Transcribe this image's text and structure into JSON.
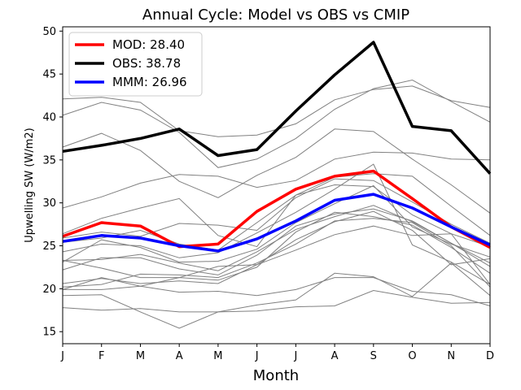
{
  "chart_data": {
    "type": "line",
    "title": "Annual Cycle: Model vs OBS vs CMIP",
    "xlabel": "Month",
    "ylabel": "Upwelling SW (W/m2)",
    "categories": [
      "J",
      "F",
      "M",
      "A",
      "M",
      "J",
      "J",
      "A",
      "S",
      "O",
      "N",
      "D"
    ],
    "ylim": [
      13.6,
      50.5
    ],
    "yticks": [
      15,
      20,
      25,
      30,
      35,
      40,
      45,
      50
    ],
    "grid": false,
    "legend_position": "top-left",
    "series": [
      {
        "name": "MOD",
        "label": "MOD: 28.40",
        "color": "#ff0000",
        "values": [
          26.1,
          27.7,
          27.3,
          24.9,
          25.2,
          29.0,
          31.6,
          33.1,
          33.7,
          30.5,
          27.2,
          24.8
        ]
      },
      {
        "name": "OBS",
        "label": "OBS: 38.78",
        "color": "#000000",
        "values": [
          36.0,
          36.7,
          37.5,
          38.6,
          35.5,
          36.2,
          40.7,
          44.9,
          48.7,
          38.9,
          38.4,
          33.4
        ]
      },
      {
        "name": "MMM",
        "label": "MMM: 26.96",
        "color": "#0000ff",
        "values": [
          25.5,
          26.2,
          25.9,
          25.0,
          24.4,
          25.8,
          27.9,
          30.3,
          31.0,
          29.4,
          27.2,
          25.1
        ]
      }
    ],
    "cmip_color": "#808080",
    "cmip_models": [
      [
        42.1,
        42.3,
        41.7,
        38.4,
        37.7,
        37.9,
        39.2,
        42.0,
        43.2,
        43.6,
        41.9,
        41.1
      ],
      [
        40.2,
        41.7,
        40.8,
        38.2,
        34.1,
        35.1,
        37.5,
        40.9,
        43.3,
        44.3,
        41.8,
        39.4
      ],
      [
        36.5,
        38.1,
        36.1,
        32.5,
        30.6,
        33.2,
        35.3,
        38.6,
        38.3,
        35.1,
        32.1,
        28.8
      ],
      [
        29.4,
        30.7,
        32.3,
        33.3,
        33.1,
        31.8,
        32.6,
        35.1,
        35.9,
        35.8,
        35.1,
        35.0
      ],
      [
        26.4,
        28.2,
        29.4,
        30.5,
        26.2,
        24.9,
        30.9,
        33.0,
        33.4,
        33.1,
        29.6,
        26.2
      ],
      [
        25.9,
        26.6,
        26.1,
        27.6,
        27.4,
        26.8,
        30.6,
        32.8,
        32.6,
        30.1,
        27.5,
        25.3
      ],
      [
        25.4,
        25.9,
        26.8,
        25.2,
        24.5,
        27.7,
        30.9,
        32.1,
        31.9,
        28.6,
        26.4,
        24.9
      ],
      [
        24.3,
        25.2,
        25.0,
        23.6,
        24.2,
        26.5,
        28.9,
        31.6,
        34.5,
        25.1,
        23.1,
        20.5
      ],
      [
        23.1,
        25.7,
        24.8,
        23.1,
        23.2,
        24.6,
        27.7,
        29.9,
        32.0,
        27.2,
        25.2,
        23.7
      ],
      [
        23.3,
        23.4,
        24.0,
        23.0,
        22.1,
        24.3,
        26.9,
        28.4,
        29.7,
        27.8,
        25.3,
        23.0
      ],
      [
        22.2,
        23.6,
        23.6,
        22.3,
        21.6,
        23.9,
        27.3,
        28.7,
        29.3,
        27.9,
        25.3,
        22.6
      ],
      [
        23.3,
        22.4,
        21.3,
        21.3,
        21.0,
        22.5,
        26.6,
        28.9,
        28.4,
        27.4,
        24.8,
        21.8
      ],
      [
        20.6,
        21.2,
        20.6,
        20.9,
        20.6,
        22.8,
        25.7,
        27.8,
        29.0,
        26.8,
        22.8,
        23.5
      ],
      [
        20.2,
        20.5,
        21.7,
        21.6,
        21.3,
        23.0,
        25.2,
        27.9,
        28.2,
        27.7,
        25.0,
        20.2
      ],
      [
        19.9,
        21.3,
        20.3,
        21.3,
        22.6,
        22.8,
        24.5,
        26.3,
        27.3,
        26.2,
        26.4,
        20.5
      ],
      [
        19.2,
        19.3,
        17.3,
        15.4,
        17.3,
        18.1,
        18.7,
        21.8,
        21.4,
        19.1,
        23.0,
        19.2
      ],
      [
        17.8,
        17.5,
        17.7,
        17.3,
        17.3,
        17.4,
        17.9,
        18.0,
        19.8,
        19.0,
        18.3,
        18.4
      ],
      [
        19.9,
        19.9,
        20.3,
        19.6,
        19.7,
        19.2,
        19.9,
        21.3,
        21.3,
        19.7,
        19.3,
        18.0
      ]
    ]
  }
}
